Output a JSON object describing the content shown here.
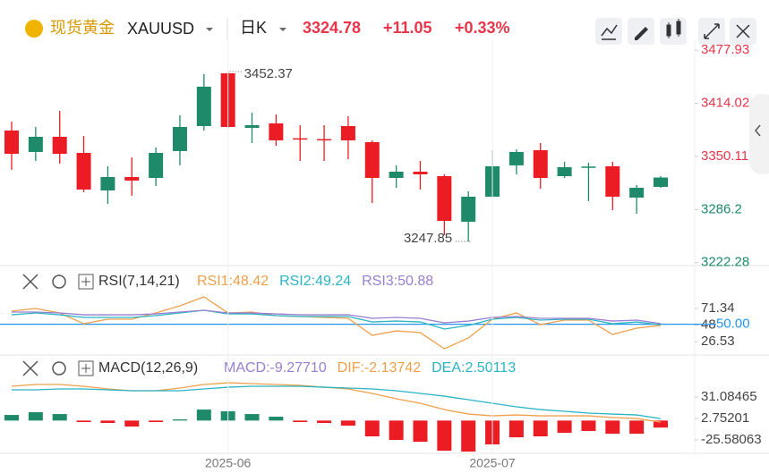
{
  "header": {
    "name": "现货黄金",
    "symbol": "XAUUSD",
    "period": "日K",
    "price": "3324.78",
    "change": "+11.05",
    "change_pct": "+0.33%"
  },
  "chart_data": [
    {
      "type": "candlestick",
      "up_color": "#1e8a6a",
      "down_color": "#eb1c24",
      "open": [
        3381.3,
        3355.5,
        3373.8,
        3354.4,
        3309.2,
        3325.4,
        3324.3,
        3356.6,
        3386.7,
        3450.2,
        3384.5,
        3389.9,
        3372.0,
        3371.0,
        3386.7,
        3367.3,
        3324.3,
        3331.8,
        3326.4,
        3271.5,
        3301.7,
        3339.4,
        3357.7,
        3326.4,
        3337.2,
        3338.3,
        3300.6,
        3313.5
      ],
      "high": [
        3392.1,
        3385.6,
        3405.0,
        3374.9,
        3338.3,
        3349.0,
        3360.9,
        3399.6,
        3449.1,
        3452.37,
        3402.9,
        3400.7,
        3387.8,
        3387.8,
        3398.5,
        3369.5,
        3339.4,
        3344.7,
        3328.6,
        3308.1,
        3357.7,
        3358.7,
        3366.3,
        3343.7,
        3342.6,
        3343.7,
        3315.7,
        3326.4
      ],
      "low": [
        3334.0,
        3344.7,
        3341.5,
        3307.1,
        3293.1,
        3302.8,
        3314.6,
        3339.4,
        3381.3,
        3384.5,
        3366.3,
        3363.0,
        3344.7,
        3344.7,
        3346.9,
        3294.1,
        3312.4,
        3310.3,
        3255.4,
        3247.85,
        3300.6,
        3328.6,
        3311.4,
        3324.3,
        3296.3,
        3285.5,
        3281.2,
        3312.4
      ],
      "close": [
        3353.3,
        3373.8,
        3353.3,
        3310.3,
        3325.4,
        3321.1,
        3354.4,
        3385.6,
        3434.1,
        3385.6,
        3387.8,
        3369.5,
        3371.0,
        3369.5,
        3369.5,
        3324.3,
        3331.8,
        3328.6,
        3272.6,
        3301.7,
        3338.3,
        3355.5,
        3324.3,
        3337.2,
        3338.0,
        3301.7,
        3312.4,
        3324.78
      ],
      "annotations": [
        {
          "label": "3452.37",
          "index": 9,
          "at": "high"
        },
        {
          "label": "3247.85",
          "index": 19,
          "at": "low"
        }
      ],
      "ylim": [
        3218.8,
        3490.0
      ],
      "yticks": [
        3477.93,
        3414.02,
        3350.11,
        3286.2,
        3222.28
      ]
    },
    {
      "type": "line",
      "title": "RSI(7,14,21)",
      "series": [
        {
          "name": "RSI1:48.42",
          "color": "#f0a04b",
          "values": [
            67.7,
            71.3,
            65.3,
            50.7,
            56.8,
            56.8,
            65.3,
            75.0,
            87.1,
            65.3,
            66.5,
            61.6,
            60.4,
            59.2,
            58.0,
            35.0,
            41.0,
            38.6,
            16.8,
            31.4,
            56.8,
            65.3,
            49.5,
            55.6,
            55.6,
            36.2,
            44.7,
            48.42
          ]
        },
        {
          "name": "RSI2:49.24",
          "color": "#2bb5c4",
          "values": [
            62.8,
            65.3,
            62.8,
            59.2,
            59.2,
            59.2,
            61.6,
            65.3,
            68.9,
            64.0,
            64.0,
            61.6,
            60.4,
            60.4,
            60.4,
            53.1,
            54.3,
            53.1,
            43.5,
            48.3,
            56.8,
            59.2,
            55.6,
            56.8,
            56.8,
            50.7,
            53.1,
            49.24
          ]
        },
        {
          "name": "RSI3:50.88",
          "color": "#9a7fd1",
          "values": [
            66.5,
            66.5,
            65.3,
            62.8,
            62.8,
            62.8,
            64.0,
            66.5,
            68.9,
            65.3,
            65.3,
            64.0,
            62.8,
            62.8,
            62.8,
            58.0,
            59.2,
            58.0,
            51.9,
            54.3,
            59.2,
            60.4,
            58.0,
            58.0,
            58.0,
            54.3,
            55.6,
            50.88
          ]
        }
      ],
      "reference_line": {
        "value": 50,
        "label": "50.00",
        "color": "#2196f3"
      },
      "ylim": [
        10.8,
        125.8
      ],
      "yticks": [
        71.34,
        48.93,
        26.53
      ]
    },
    {
      "type": "macd",
      "title": "MACD(12,26,9)",
      "positive_color": "#1e8a6a",
      "negative_color": "#eb1c24",
      "categories": [
        null,
        null,
        null,
        null,
        null,
        null,
        null,
        null,
        null,
        "2025-06",
        null,
        null,
        null,
        null,
        null,
        null,
        null,
        null,
        null,
        null,
        "2025-07",
        null,
        null,
        null,
        null,
        null,
        null,
        null
      ],
      "series": [
        {
          "name": "MACD:-9.27710",
          "color": "#9a7fd1",
          "kind": "bar",
          "values": [
            7.4,
            11.0,
            8.6,
            -2.0,
            -3.2,
            -7.9,
            -2.0,
            1.5,
            14.5,
            12.2,
            8.6,
            5.1,
            -2.0,
            -3.2,
            -6.7,
            -20.9,
            -25.6,
            -28.0,
            -39.8,
            -41.0,
            -31.5,
            -22.1,
            -20.9,
            -16.2,
            -13.8,
            -17.4,
            -17.4,
            -9.2771
          ]
        },
        {
          "name": "DIF:-2.13742",
          "color": "#f0a04b",
          "kind": "line",
          "values": [
            45.2,
            47.6,
            47.6,
            45.2,
            41.7,
            39.3,
            39.3,
            42.9,
            47.6,
            49.9,
            48.8,
            47.6,
            46.4,
            44.0,
            41.7,
            35.8,
            28.7,
            22.8,
            14.5,
            8.6,
            6.2,
            7.4,
            6.2,
            6.2,
            6.2,
            3.9,
            2.7,
            -2.13742
          ]
        },
        {
          "name": "DEA:2.50113",
          "color": "#2bb5c4",
          "kind": "line",
          "values": [
            40.5,
            40.5,
            41.7,
            41.7,
            40.5,
            39.3,
            39.3,
            39.3,
            41.7,
            44.0,
            45.2,
            45.2,
            45.2,
            44.0,
            42.9,
            41.7,
            39.3,
            35.8,
            32.2,
            27.5,
            22.8,
            18.1,
            14.5,
            12.2,
            9.8,
            8.6,
            7.4,
            2.50113
          ]
        }
      ],
      "ylim": [
        -46.8,
        83.0
      ],
      "yticks": [
        31.08465,
        2.75201,
        -25.58063
      ]
    }
  ]
}
